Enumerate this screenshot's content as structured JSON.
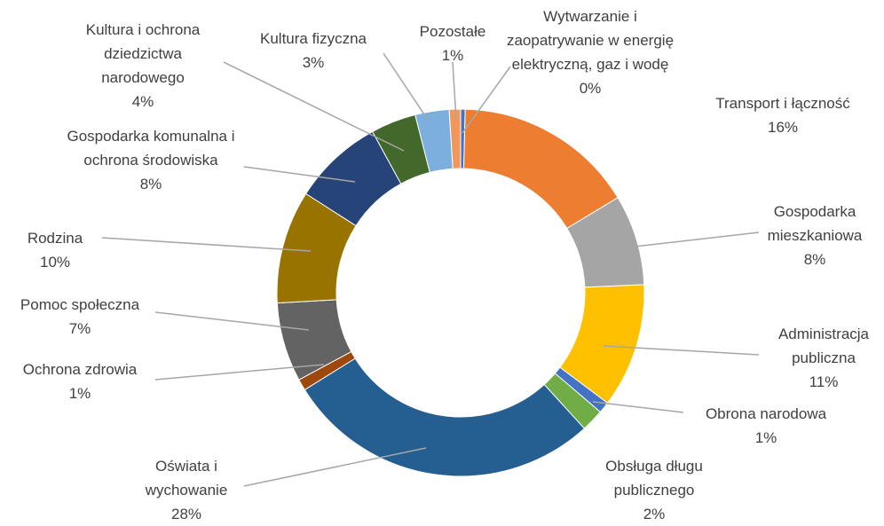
{
  "chart_data": {
    "type": "donut",
    "categories": [
      "Wytwarzanie i zaopatrywanie w energię elektryczną, gaz i wodę",
      "Transport i łączność",
      "Gospodarka mieszkaniowa",
      "Administracja publiczna",
      "Obrona narodowa",
      "Obsługa długu publicznego",
      "Oświata i wychowanie",
      "Ochrona zdrowia",
      "Pomoc społeczna",
      "Rodzina",
      "Gospodarka komunalna i ochrona środowiska",
      "Kultura i ochrona dziedzictwa narodowego",
      "Kultura fizyczna",
      "Pozostałe"
    ],
    "values": [
      0.4,
      16,
      8,
      11,
      1,
      2,
      28,
      1,
      7,
      10,
      8,
      4,
      3,
      1
    ],
    "value_labels": [
      "0%",
      "16%",
      "8%",
      "11%",
      "1%",
      "2%",
      "28%",
      "1%",
      "7%",
      "10%",
      "8%",
      "4%",
      "3%",
      "1%"
    ],
    "colors": [
      "#4472c4",
      "#ed7d31",
      "#a5a5a5",
      "#ffc000",
      "#4472c4",
      "#70ad47",
      "#255e91",
      "#9e480e",
      "#636363",
      "#997300",
      "#264478",
      "#43682b",
      "#7cafdd",
      "#f1975a"
    ]
  }
}
